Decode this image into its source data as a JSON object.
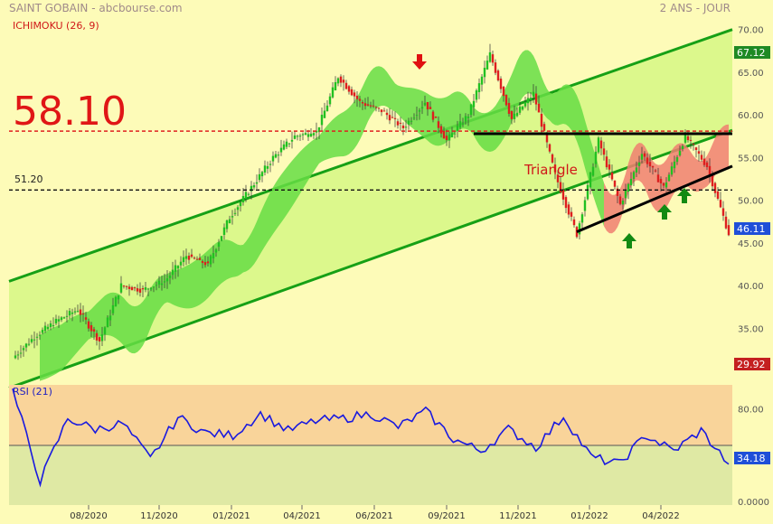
{
  "header": {
    "left_title": "SAINT GOBAIN - abcbourse.com",
    "right_title": "2 ANS - JOUR",
    "indicator_label": "ICHIMOKU (26, 9)"
  },
  "colors": {
    "background": "#fdfbb8",
    "channel_fill": "#dcf88c",
    "channel_line": "#16a016",
    "candle_up": "#22c022",
    "candle_down": "#dd1f1f",
    "cloud_bull": "#66dd44",
    "cloud_bear": "#f07f70",
    "level_red": "#e02020",
    "rsi_line": "#1a1adf",
    "rsi_upper_zone": "#f9d49a",
    "rsi_lower_zone": "#dfe9a4",
    "price_badge_green": "#1f8a24",
    "price_badge_blue": "#1f4fd8",
    "price_badge_red": "#c42020"
  },
  "annotations": {
    "big_level_label": "58.10",
    "small_level_label": "51.20",
    "pattern_label": "Triangle",
    "red_arrow_icon": "arrow-down-icon",
    "green_arrow_icon": "arrow-up-icon"
  },
  "price_badges": {
    "high": "67.12",
    "last": "46.11",
    "low": "29.92",
    "rsi_last": "34.18"
  },
  "chart_data": {
    "type": "line",
    "x_tick_labels": [
      "08/2020",
      "11/2020",
      "01/2021",
      "04/2021",
      "06/2021",
      "09/2021",
      "11/2021",
      "01/2022",
      "04/2022"
    ],
    "price_axis": {
      "ticks": [
        "70.00",
        "65.00",
        "60.00",
        "55.00",
        "50.00",
        "45.00",
        "40.00",
        "35.00"
      ],
      "ylim": [
        29,
        70.5
      ]
    },
    "rsi_axis": {
      "label": "RSI (21)",
      "ticks": [
        "80.00",
        "0.0000"
      ],
      "ylim": [
        0,
        100
      ],
      "midline": 50,
      "upper_zone": [
        50,
        100
      ]
    },
    "levels": [
      {
        "value": 58.1,
        "style": "dashed-red"
      },
      {
        "value": 51.2,
        "style": "dashed-black"
      }
    ],
    "price_series": [
      {
        "label": "07/2020",
        "value": 31.5
      },
      {
        "label": "08/2020",
        "value": 34.0
      },
      {
        "label": "09/2020",
        "value": 35.8
      },
      {
        "label": "10/2020",
        "value": 37.2
      },
      {
        "label": "11/2020",
        "value": 33.5
      },
      {
        "label": "11/2020",
        "value": 40.0
      },
      {
        "label": "12/2020",
        "value": 39.5
      },
      {
        "label": "01/2021",
        "value": 40.5
      },
      {
        "label": "02/2021",
        "value": 43.5
      },
      {
        "label": "03/2021",
        "value": 42.5
      },
      {
        "label": "04/2021",
        "value": 48.0
      },
      {
        "label": "05/2021",
        "value": 51.5
      },
      {
        "label": "06/2021",
        "value": 55.0
      },
      {
        "label": "06/2021",
        "value": 57.5
      },
      {
        "label": "07/2021",
        "value": 58.0
      },
      {
        "label": "08/2021",
        "value": 64.5
      },
      {
        "label": "08/2021",
        "value": 61.5
      },
      {
        "label": "09/2021",
        "value": 60.5
      },
      {
        "label": "10/2021",
        "value": 58.5
      },
      {
        "label": "11/2021",
        "value": 61.5
      },
      {
        "label": "11/2021",
        "value": 57.0
      },
      {
        "label": "12/2021",
        "value": 60.0
      },
      {
        "label": "01/2022",
        "value": 67.1
      },
      {
        "label": "01/2022",
        "value": 59.5
      },
      {
        "label": "02/2022",
        "value": 62.5
      },
      {
        "label": "02/2022",
        "value": 53.0
      },
      {
        "label": "03/2022",
        "value": 46.0
      },
      {
        "label": "03/2022",
        "value": 57.0
      },
      {
        "label": "04/2022",
        "value": 49.5
      },
      {
        "label": "04/2022",
        "value": 55.5
      },
      {
        "label": "05/2022",
        "value": 51.5
      },
      {
        "label": "05/2022",
        "value": 57.5
      },
      {
        "label": "06/2022",
        "value": 54.0
      },
      {
        "label": "06/2022",
        "value": 46.1
      }
    ],
    "channel": {
      "upper": [
        {
          "label": "07/2020",
          "value": 40.5
        },
        {
          "label": "06/2022",
          "value": 70.0
        }
      ],
      "lower": [
        {
          "label": "07/2020",
          "value": 28.0
        },
        {
          "label": "06/2022",
          "value": 58.2
        }
      ]
    },
    "triangle": {
      "top": [
        {
          "label": "01/2022",
          "value": 57.8
        },
        {
          "label": "06/2022",
          "value": 57.8
        }
      ],
      "bottom": [
        {
          "label": "03/2022",
          "value": 46.3
        },
        {
          "label": "06/2022",
          "value": 54.0
        }
      ]
    },
    "rsi_series": [
      {
        "label": "07/2020",
        "value": 95
      },
      {
        "label": "07/2020",
        "value": 20
      },
      {
        "label": "08/2020",
        "value": 72
      },
      {
        "label": "09/2020",
        "value": 63
      },
      {
        "label": "10/2020",
        "value": 68
      },
      {
        "label": "11/2020",
        "value": 38
      },
      {
        "label": "11/2020",
        "value": 73
      },
      {
        "label": "12/2020",
        "value": 60
      },
      {
        "label": "01/2021",
        "value": 58
      },
      {
        "label": "02/2021",
        "value": 76
      },
      {
        "label": "03/2021",
        "value": 62
      },
      {
        "label": "04/2021",
        "value": 70
      },
      {
        "label": "05/2021",
        "value": 72
      },
      {
        "label": "06/2021",
        "value": 76
      },
      {
        "label": "07/2021",
        "value": 65
      },
      {
        "label": "08/2021",
        "value": 78
      },
      {
        "label": "09/2021",
        "value": 55
      },
      {
        "label": "10/2021",
        "value": 45
      },
      {
        "label": "11/2021",
        "value": 63
      },
      {
        "label": "12/2021",
        "value": 48
      },
      {
        "label": "01/2022",
        "value": 74
      },
      {
        "label": "02/2022",
        "value": 40
      },
      {
        "label": "03/2022",
        "value": 34
      },
      {
        "label": "04/2022",
        "value": 58
      },
      {
        "label": "05/2022",
        "value": 45
      },
      {
        "label": "06/2022",
        "value": 62
      },
      {
        "label": "06/2022",
        "value": 34
      }
    ]
  }
}
